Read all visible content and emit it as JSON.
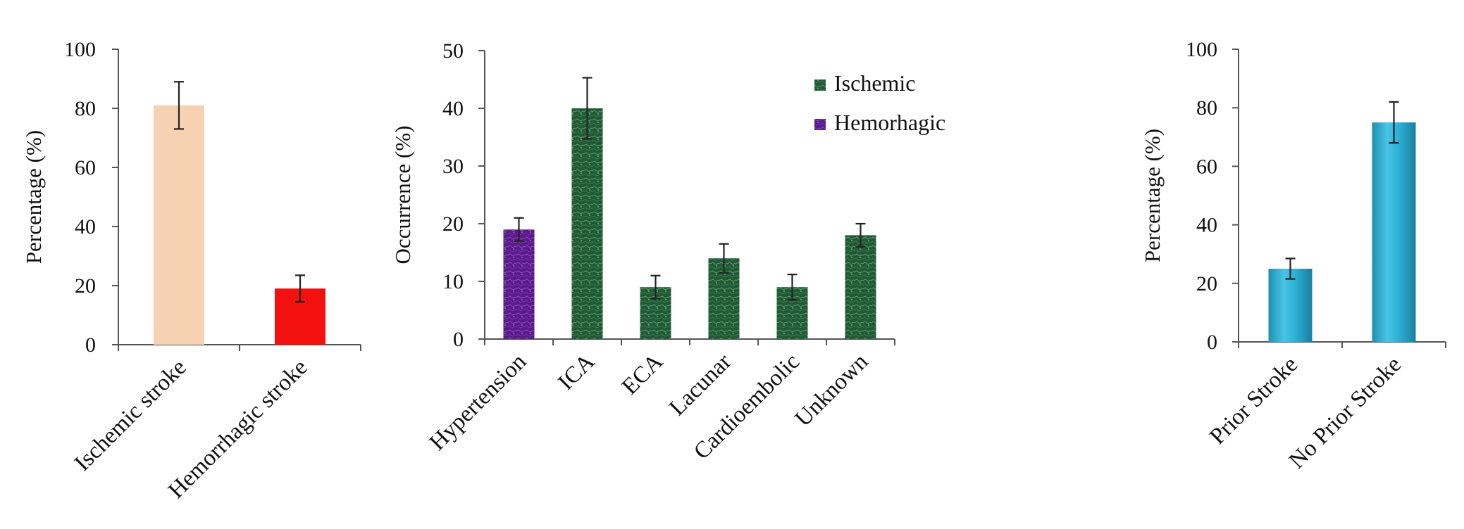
{
  "chart_data": [
    {
      "type": "bar",
      "categories": [
        "Ischemic stroke",
        "Hemorrhagic stroke"
      ],
      "values": [
        81,
        19
      ],
      "errors": [
        8,
        4.5
      ],
      "colors": [
        "#f7d2b2",
        "#f2110f"
      ],
      "xlabel": "",
      "ylabel": "Percentage (%)",
      "ylim": [
        0,
        100
      ],
      "yticks": [
        "0",
        "20",
        "40",
        "60",
        "80",
        "100"
      ],
      "grid": false
    },
    {
      "type": "bar",
      "categories": [
        "Hypertension",
        "ICA",
        "ECA",
        "Lacunar",
        "Cardioembolic",
        "Unknown"
      ],
      "values": [
        19,
        40,
        9,
        14,
        9,
        18
      ],
      "errors": [
        2,
        5.3,
        2,
        2.5,
        2.2,
        2
      ],
      "series_membership": [
        "Hemorhagic",
        "Ischemic",
        "Ischemic",
        "Ischemic",
        "Ischemic",
        "Ischemic"
      ],
      "legend": [
        {
          "name": "Ischemic",
          "color": "#1f5a35"
        },
        {
          "name": "Hemorhagic",
          "color": "#5a1a8a"
        }
      ],
      "legend_position": "top-right",
      "xlabel": "",
      "ylabel": "Occurrence (%)",
      "ylim": [
        0,
        50
      ],
      "yticks": [
        "0",
        "10",
        "20",
        "30",
        "40",
        "50"
      ],
      "grid": false
    },
    {
      "type": "bar",
      "categories": [
        "Prior Stroke",
        "No Prior Stroke"
      ],
      "values": [
        25,
        75
      ],
      "errors": [
        3.5,
        7
      ],
      "colors": [
        "#2cb1d6",
        "#2cb1d6"
      ],
      "xlabel": "",
      "ylabel": "Percentage (%)",
      "ylim": [
        0,
        100
      ],
      "yticks": [
        "0",
        "20",
        "40",
        "60",
        "80",
        "100"
      ],
      "grid": false
    }
  ]
}
